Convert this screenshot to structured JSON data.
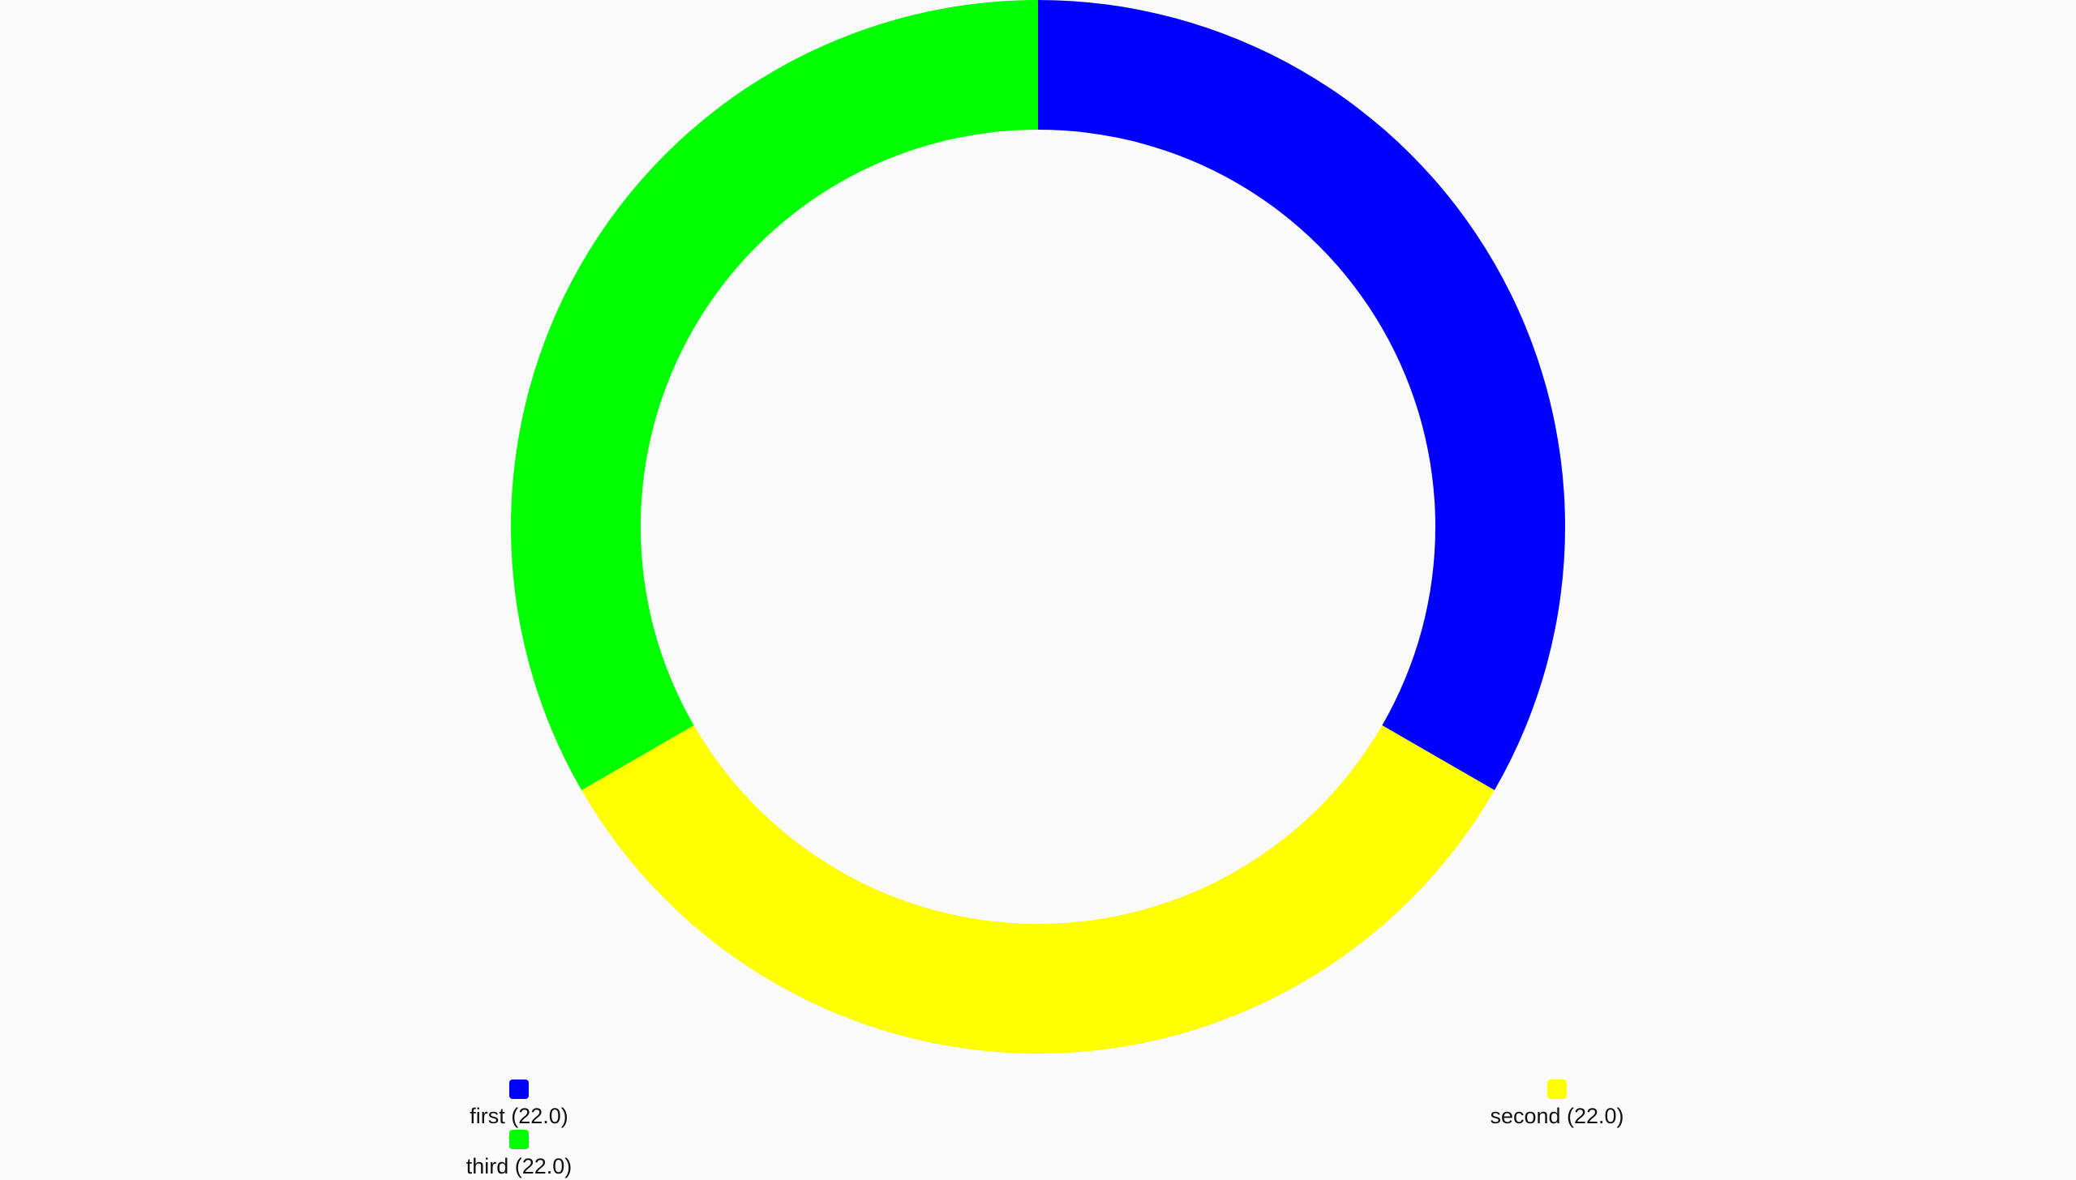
{
  "chart_data": {
    "type": "pie",
    "style": "donut",
    "start_angle_deg": 0,
    "direction": "clockwise",
    "slices": [
      {
        "label": "first (22.0)",
        "value": 22.0,
        "color": "#0000ff"
      },
      {
        "label": "second (22.0)",
        "value": 22.0,
        "color": "#ffff00"
      },
      {
        "label": "third (22.0)",
        "value": 22.0,
        "color": "#00ff00"
      }
    ]
  }
}
